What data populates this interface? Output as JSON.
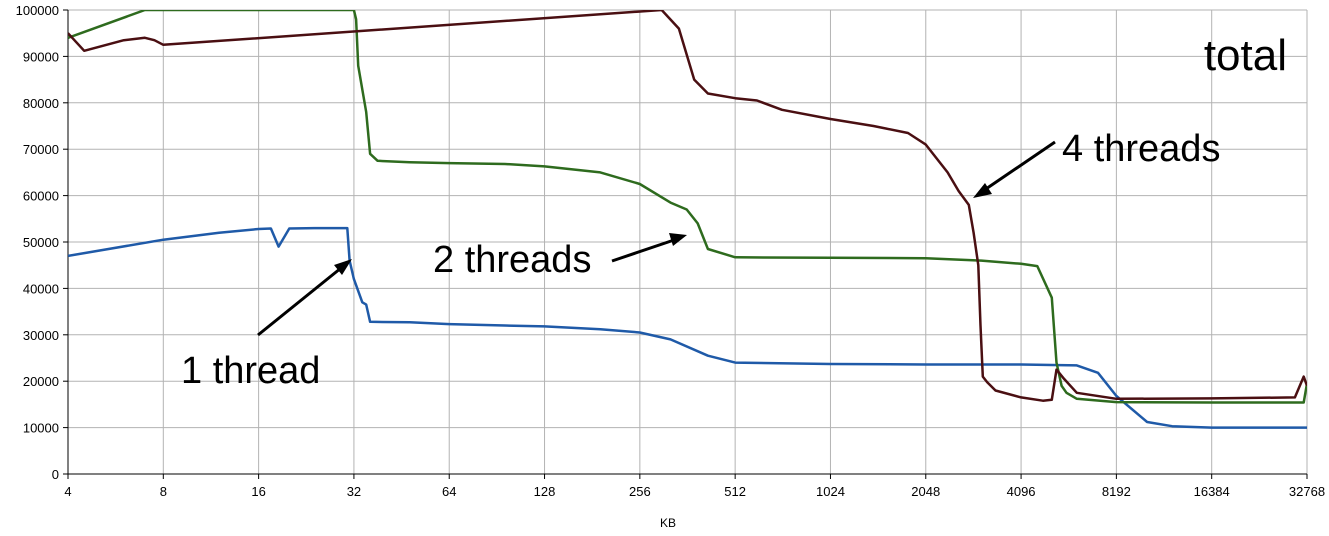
{
  "chart_data": {
    "type": "line",
    "title": "total",
    "xlabel": "KB",
    "ylabel": "",
    "x_scale": "log2",
    "xlim": [
      4,
      32768
    ],
    "ylim": [
      0,
      100000
    ],
    "grid": true,
    "x_ticks": [
      "4",
      "8",
      "16",
      "32",
      "64",
      "128",
      "256",
      "512",
      "1024",
      "2048",
      "4096",
      "8192",
      "16384",
      "32768"
    ],
    "y_ticks": [
      "0",
      "10000",
      "20000",
      "30000",
      "40000",
      "50000",
      "60000",
      "70000",
      "80000",
      "90000",
      "100000"
    ],
    "series": [
      {
        "name": "1 thread",
        "color": "#1f5aa8",
        "x": [
          4,
          8,
          12,
          16,
          17.5,
          18.5,
          20,
          24,
          30.5,
          31,
          32,
          34,
          35,
          36,
          48,
          64,
          96,
          128,
          192,
          256,
          320,
          420,
          512,
          1024,
          2048,
          4096,
          5120,
          6144,
          7168,
          8192,
          10240,
          12288,
          16384,
          32768
        ],
        "values": [
          47000,
          50500,
          52000,
          52800,
          52900,
          49000,
          52900,
          53000,
          53000,
          46000,
          42000,
          37000,
          36500,
          32800,
          32700,
          32300,
          32000,
          31800,
          31200,
          30500,
          29000,
          25500,
          24000,
          23700,
          23600,
          23600,
          23500,
          23400,
          21800,
          16800,
          11200,
          10300,
          10000,
          10000
        ]
      },
      {
        "name": "2 threads",
        "color": "#2e6b1e",
        "x": [
          4,
          7,
          30,
          32,
          32.5,
          33,
          35,
          36,
          38,
          48,
          64,
          96,
          128,
          192,
          256,
          320,
          360,
          390,
          420,
          512,
          1024,
          2048,
          3072,
          4096,
          4608,
          5120,
          5300,
          5500,
          5700,
          6144,
          8192,
          16384,
          32000,
          32768
        ],
        "values": [
          94000,
          100000,
          100000,
          100000,
          98000,
          88000,
          78000,
          69000,
          67500,
          67200,
          67000,
          66800,
          66300,
          65000,
          62500,
          58500,
          57000,
          54000,
          48500,
          46700,
          46600,
          46500,
          46000,
          45300,
          44800,
          38000,
          24000,
          19000,
          17500,
          16200,
          15500,
          15400,
          15400,
          19500
        ]
      },
      {
        "name": "4 threads",
        "color": "#4a0f12",
        "x": [
          4,
          4.5,
          6,
          7,
          7.5,
          8,
          300,
          340,
          380,
          420,
          512,
          600,
          720,
          1024,
          1400,
          1800,
          2048,
          2400,
          2600,
          2800,
          2900,
          3000,
          3050,
          3100,
          3200,
          3400,
          4096,
          4800,
          5120,
          5300,
          5600,
          6144,
          8192,
          16384,
          30000,
          32000,
          32768
        ],
        "values": [
          95000,
          91200,
          93500,
          94000,
          93500,
          92500,
          100000,
          96000,
          85000,
          82000,
          81000,
          80500,
          78500,
          76500,
          75000,
          73500,
          71000,
          65000,
          61000,
          58000,
          52000,
          45000,
          32000,
          21000,
          19800,
          18000,
          16500,
          15800,
          16000,
          22500,
          20500,
          17500,
          16200,
          16300,
          16500,
          21000,
          19000
        ]
      }
    ]
  },
  "annotations": {
    "one": "1 thread",
    "two": "2 threads",
    "four": "4 threads"
  }
}
